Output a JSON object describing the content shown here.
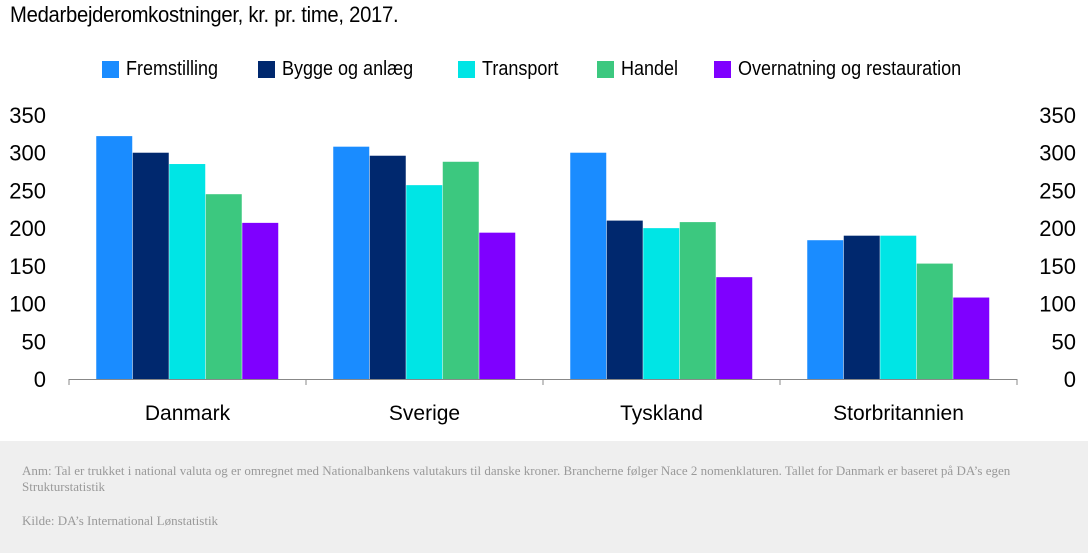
{
  "title": "Medarbejderomkostninger, kr. pr. time, 2017.",
  "colors": {
    "Fremstilling": "#1a8cff",
    "Bygge og anlæg": "#00286e",
    "Transport": "#00e5e5",
    "Handel": "#3cc87f",
    "Overnatning og restauration": "#7f00ff"
  },
  "chart_data": {
    "type": "bar",
    "categories": [
      "Danmark",
      "Sverige",
      "Tyskland",
      "Storbritannien"
    ],
    "series": [
      {
        "name": "Fremstilling",
        "values": [
          322,
          308,
          300,
          184
        ]
      },
      {
        "name": "Bygge og anlæg",
        "values": [
          300,
          296,
          210,
          190
        ]
      },
      {
        "name": "Transport",
        "values": [
          285,
          257,
          200,
          190
        ]
      },
      {
        "name": "Handel",
        "values": [
          245,
          288,
          208,
          153
        ]
      },
      {
        "name": "Overnatning og restauration",
        "values": [
          207,
          194,
          135,
          108
        ]
      }
    ],
    "ylim": [
      0,
      350
    ],
    "yticks": [
      "0",
      "50",
      "100",
      "150",
      "200",
      "250",
      "300",
      "350"
    ],
    "legend_position": "top-center",
    "grid": false,
    "dual_y_axis": true
  },
  "footer": {
    "note": "Anm: Tal er trukket i national valuta og er omregnet med Nationalbankens valutakurs til danske kroner. Brancherne følger Nace 2 nomenklaturen. Tallet for Danmark er baseret på DA’s egen Strukturstatistik",
    "source": "Kilde: DA’s International Lønstatistik"
  }
}
